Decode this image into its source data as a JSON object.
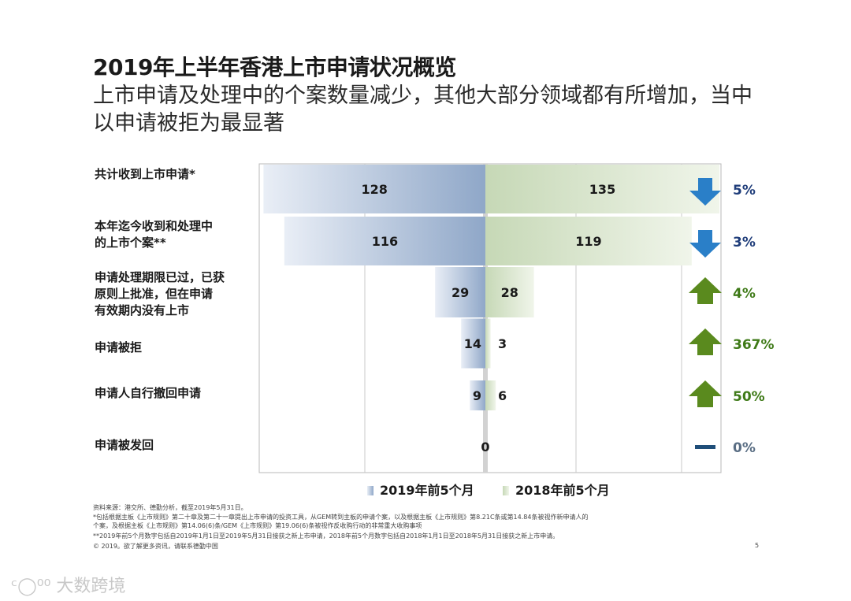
{
  "title": "2019年上半年香港上市申请状况概览",
  "subtitle": "上市申请及处理中的个案数量减少，其他大部分领域都有所增加，当中以申请被拒为最显著",
  "colors": {
    "left_bar_dark": "#8fa7c8",
    "left_bar_light": "#e9eef6",
    "right_bar_dark": "#c6d8b6",
    "right_bar_light": "#f0f5ea",
    "arrow_down": "#2a7fc8",
    "arrow_up": "#5a8a1e",
    "pct_down": "#1f3d7a",
    "pct_up": "#3f7a18",
    "pct_flat": "#5a6e84"
  },
  "chart_data": {
    "type": "bar",
    "orientation": "horizontal-butterfly",
    "categories": [
      "共计收到上市申请*",
      "本年迄今收到和处理中\n的上市个案**",
      "申请处理期限已过，已获\n原则上批准，但在申请\n有效期内没有上市",
      "申请被拒",
      "申请人自行撤回申请",
      "申请被发回"
    ],
    "series": [
      {
        "name": "2019年前5个月",
        "values": [
          128,
          116,
          29,
          14,
          9,
          0
        ]
      },
      {
        "name": "2018年前5个月",
        "values": [
          135,
          119,
          28,
          3,
          6,
          0
        ]
      }
    ],
    "changes": [
      {
        "direction": "down",
        "label": "5%"
      },
      {
        "direction": "down",
        "label": "3%"
      },
      {
        "direction": "up",
        "label": "4%"
      },
      {
        "direction": "up",
        "label": "367%"
      },
      {
        "direction": "up",
        "label": "50%"
      },
      {
        "direction": "flat",
        "label": "0%"
      }
    ],
    "grid": true,
    "legend": "bottom"
  },
  "footnotes": [
    "资料来源：港交所、德勤分析，截至2019年5月31日。",
    "*包括根据主板《上市规则》第二十章及第二十一章提出上市申请的投资工具，从GEM转到主板的申请个案，以及根据主板《上市规则》第8.21C条或第14.84条被视作新申请人的",
    "个案，及根据主板《上市规则》第14.06(6)条/GEM《上市规则》第19.06(6)条被视作反收购行动的非常重大收购事项",
    "**2019年前5个月数字包括自2019年1月1日至2019年5月31日接获之新上市申请，2018年前5个月数字包括自2018年1月1日至2018年5月31日接获之新上市申请。",
    "© 2019。欲了解更多资讯，请联系德勤中国"
  ],
  "page_number": "5",
  "watermark": "大数跨境"
}
